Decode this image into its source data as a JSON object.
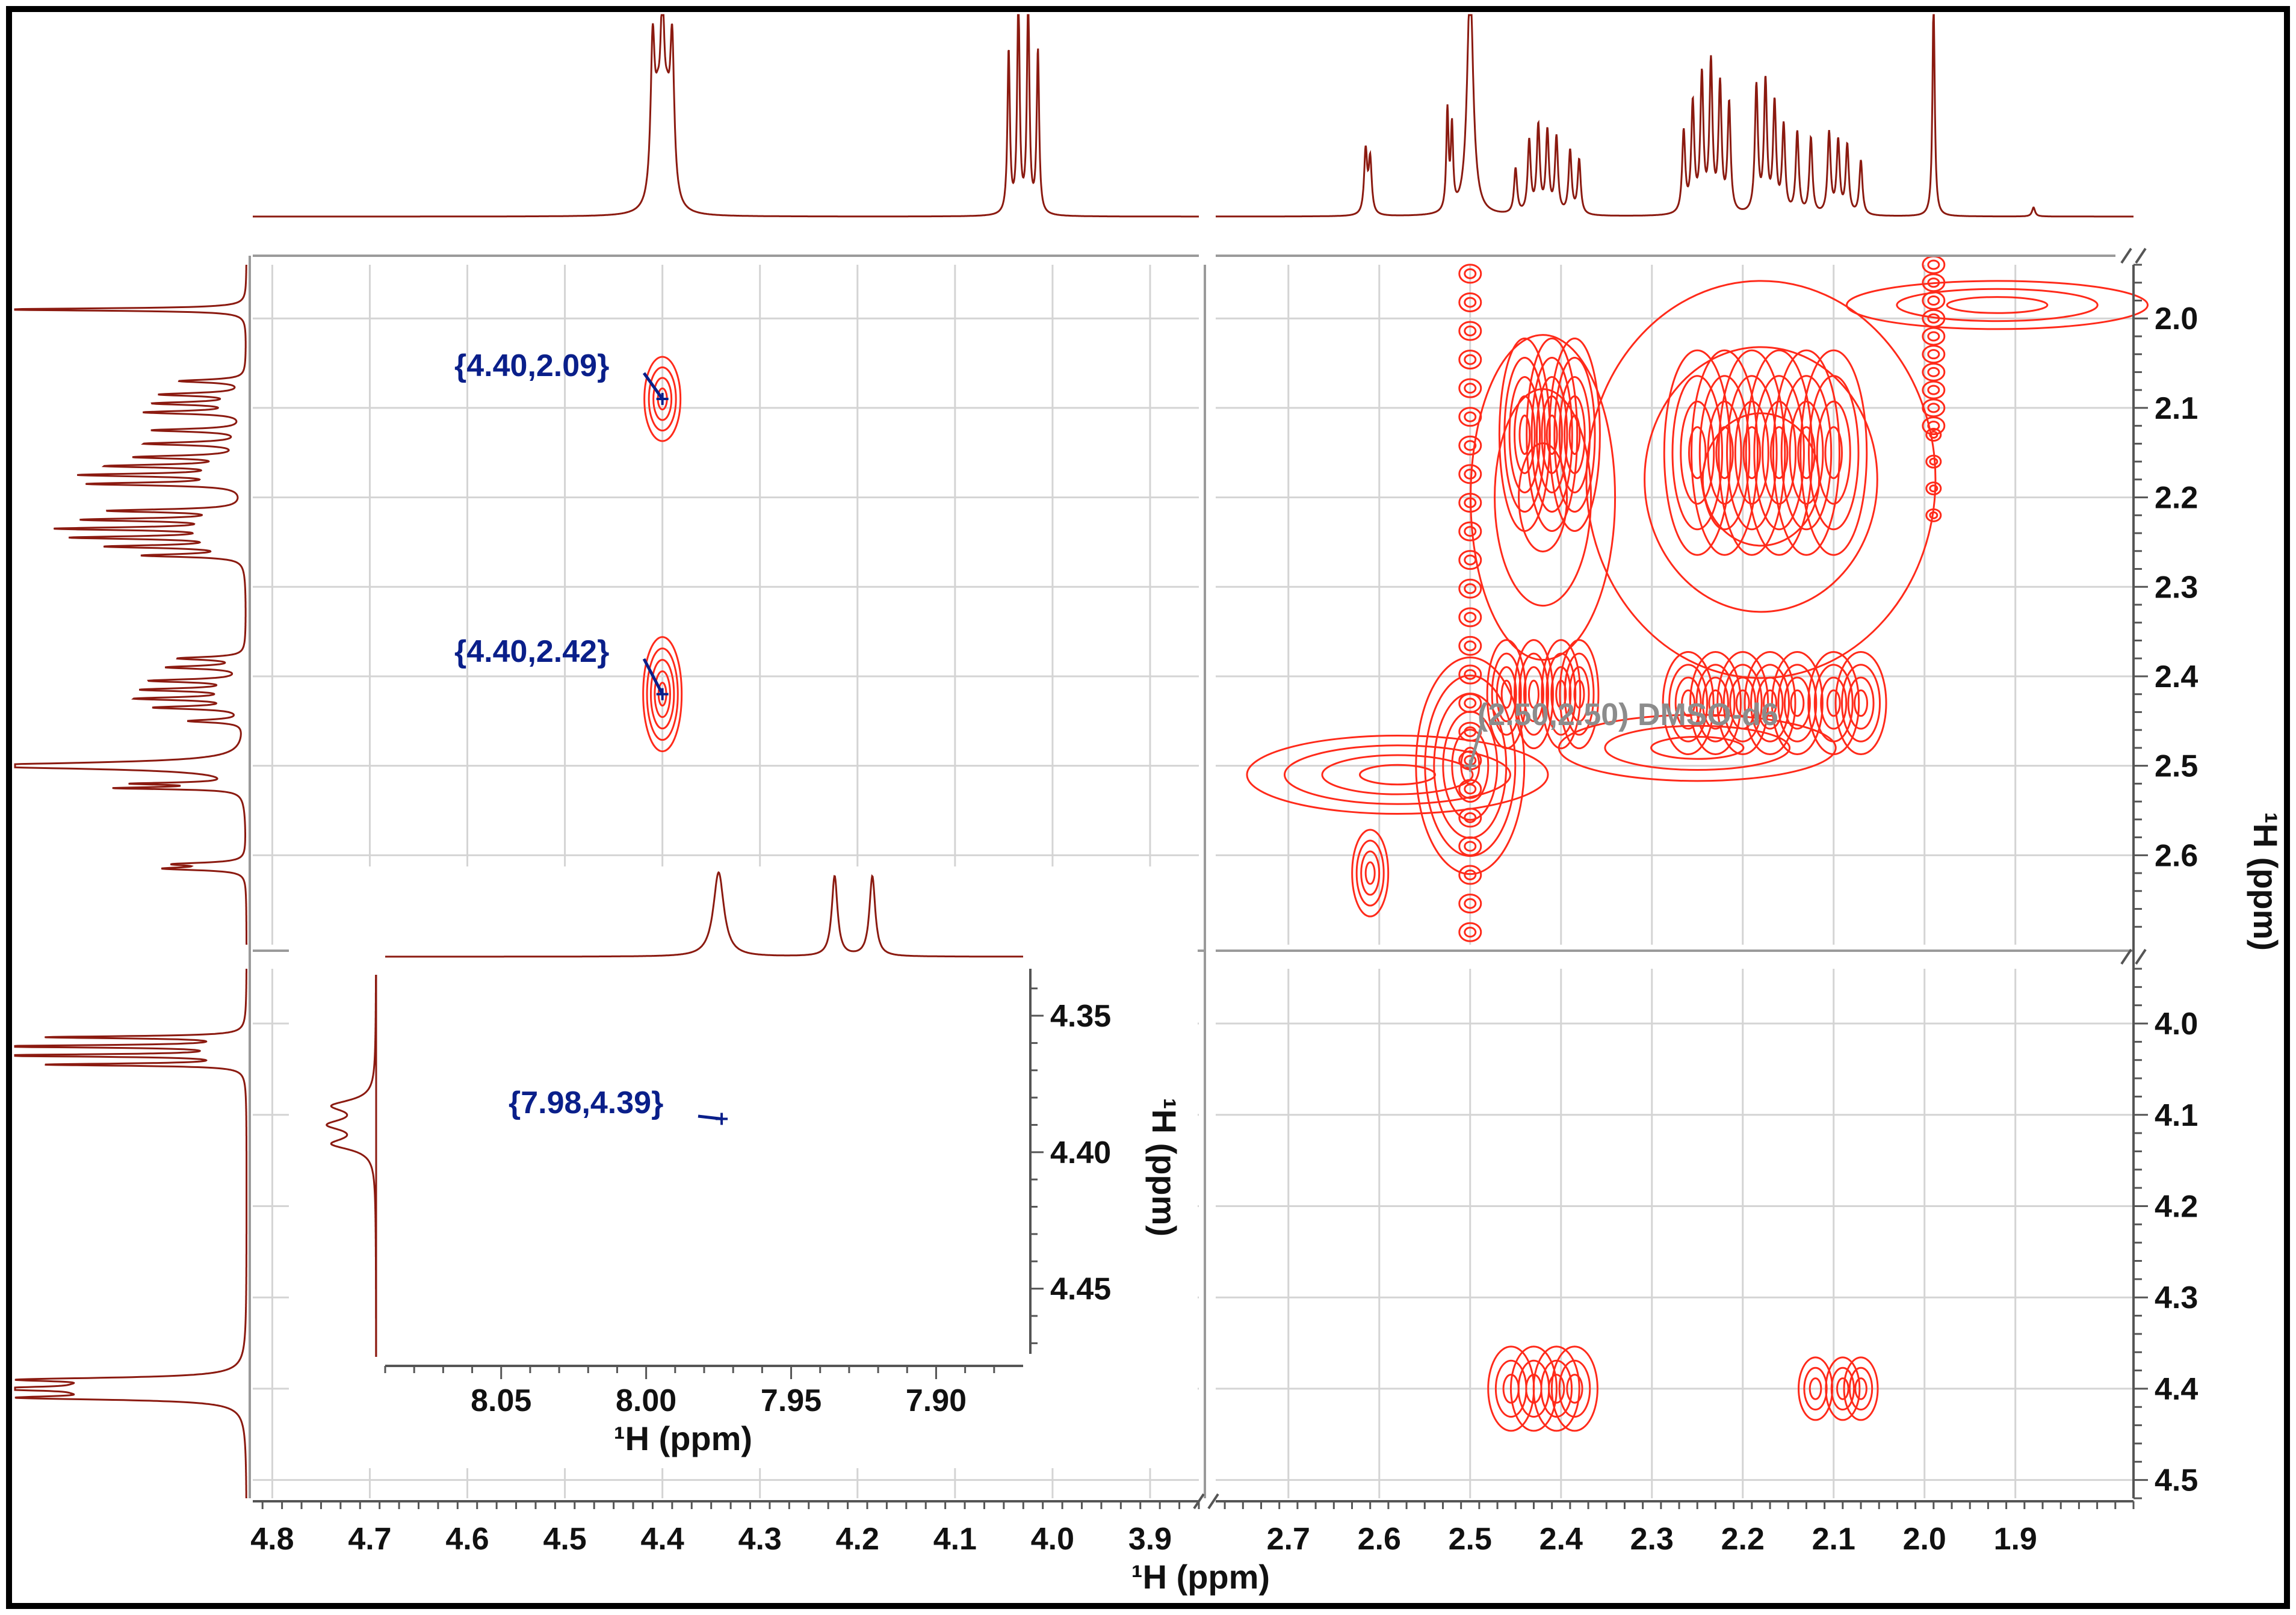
{
  "chart_data": {
    "type": "contour",
    "title": "",
    "xlabel": "¹H (ppm)",
    "ylabel": "¹H (ppm)",
    "x_broken_axis": [
      {
        "range": [
          4.82,
          3.85
        ],
        "ticks": [
          4.8,
          4.7,
          4.6,
          4.5,
          4.4,
          4.3,
          4.2,
          4.1,
          4.0,
          3.9
        ]
      },
      {
        "range": [
          2.78,
          1.77
        ],
        "ticks": [
          2.7,
          2.6,
          2.5,
          2.4,
          2.3,
          2.2,
          2.1,
          2.0,
          1.9
        ]
      }
    ],
    "y_broken_axis": [
      {
        "range": [
          1.94,
          2.7
        ],
        "ticks": [
          2.0,
          2.1,
          2.2,
          2.3,
          2.4,
          2.5,
          2.6
        ]
      },
      {
        "range": [
          3.94,
          4.52
        ],
        "ticks": [
          4.0,
          4.1,
          4.2,
          4.3,
          4.4,
          4.5
        ]
      }
    ],
    "grid": true,
    "annotations": [
      {
        "label": "{4.40,2.09}",
        "x": 4.4,
        "y": 2.09
      },
      {
        "label": "{4.40,2.42}",
        "x": 4.4,
        "y": 2.42
      },
      {
        "label": "(2.50,2.50) DMSO-d6",
        "x": 2.5,
        "y": 2.5
      }
    ],
    "cross_peaks": [
      {
        "x": 4.4,
        "y": 2.09
      },
      {
        "x": 4.4,
        "y": 2.42
      },
      {
        "x": 2.42,
        "y": 4.4
      },
      {
        "x": 2.09,
        "y": 4.4
      },
      {
        "x": 2.42,
        "y": 2.12
      },
      {
        "x": 2.22,
        "y": 2.16
      },
      {
        "x": 2.42,
        "y": 2.42
      },
      {
        "x": 2.18,
        "y": 2.42
      },
      {
        "x": 2.61,
        "y": 2.62
      }
    ],
    "diagonal_peaks": [
      {
        "x": 2.5,
        "y": 2.5
      },
      {
        "x": 1.99,
        "y": 1.99
      }
    ],
    "inset": {
      "xlabel": "¹H (ppm)",
      "ylabel": "¹H (ppm)",
      "x_range": [
        8.09,
        7.87
      ],
      "x_ticks": [
        8.05,
        8.0,
        7.95,
        7.9
      ],
      "y_range": [
        4.335,
        4.475
      ],
      "y_ticks": [
        4.35,
        4.4,
        4.45
      ],
      "annotation": {
        "label": "{7.98,4.39}",
        "x": 7.98,
        "y": 4.39
      },
      "cross_peak": {
        "x": 7.975,
        "y": 4.39
      }
    }
  },
  "colors": {
    "contour": "#ff2a1a",
    "spectrum": "#8b1a10",
    "grid": "#d4d4d4",
    "annotation": "#0a1f8a",
    "solvent_annotation": "#8c8c8c"
  }
}
